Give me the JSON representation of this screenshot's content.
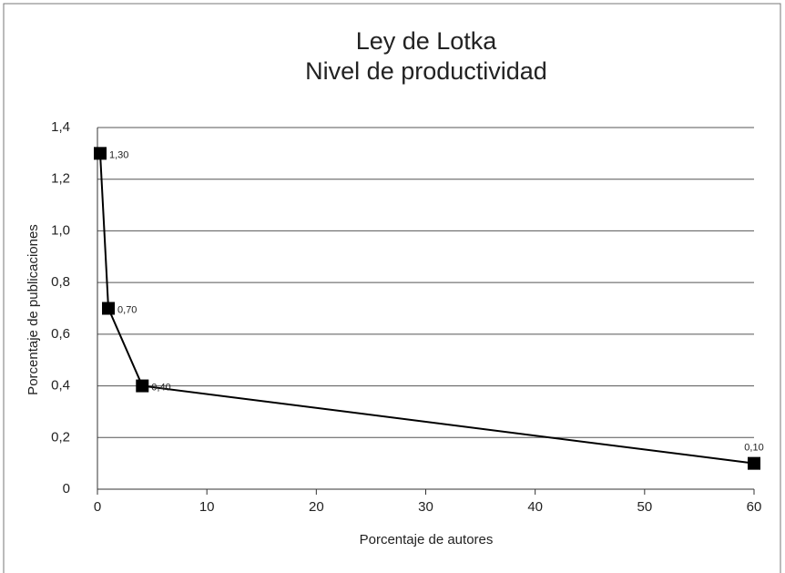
{
  "chart_data": {
    "type": "line",
    "title": "Ley de Lotka",
    "subtitle": "Nivel de productividad",
    "x_label": "Porcentaje de autores",
    "y_label": "Porcentaje de publicaciones",
    "x": [
      0.25,
      1,
      4.1,
      60
    ],
    "series": [
      {
        "name": "Nivel de productividad",
        "color": "#000000",
        "values": [
          1.3,
          0.7,
          0.4,
          0.1
        ],
        "value_labels": [
          "1,30",
          "0,70",
          "0,40",
          "0,10"
        ]
      }
    ],
    "xlim": [
      0,
      60
    ],
    "xticks": [
      0,
      10,
      20,
      30,
      40,
      50,
      60
    ],
    "ylim": [
      0,
      1.4
    ],
    "yticks": [
      0,
      {
        "value": 0.2,
        "label": "0,2"
      },
      {
        "value": 0.4,
        "label": "0,4"
      },
      {
        "value": 0.6,
        "label": "0,6"
      },
      {
        "value": 0.8,
        "label": "0,8"
      },
      {
        "value": 1.0,
        "label": "1,0"
      },
      {
        "value": 1.2,
        "label": "1,2"
      },
      {
        "value": 1.4,
        "label": "1,4"
      }
    ],
    "grid": true
  }
}
